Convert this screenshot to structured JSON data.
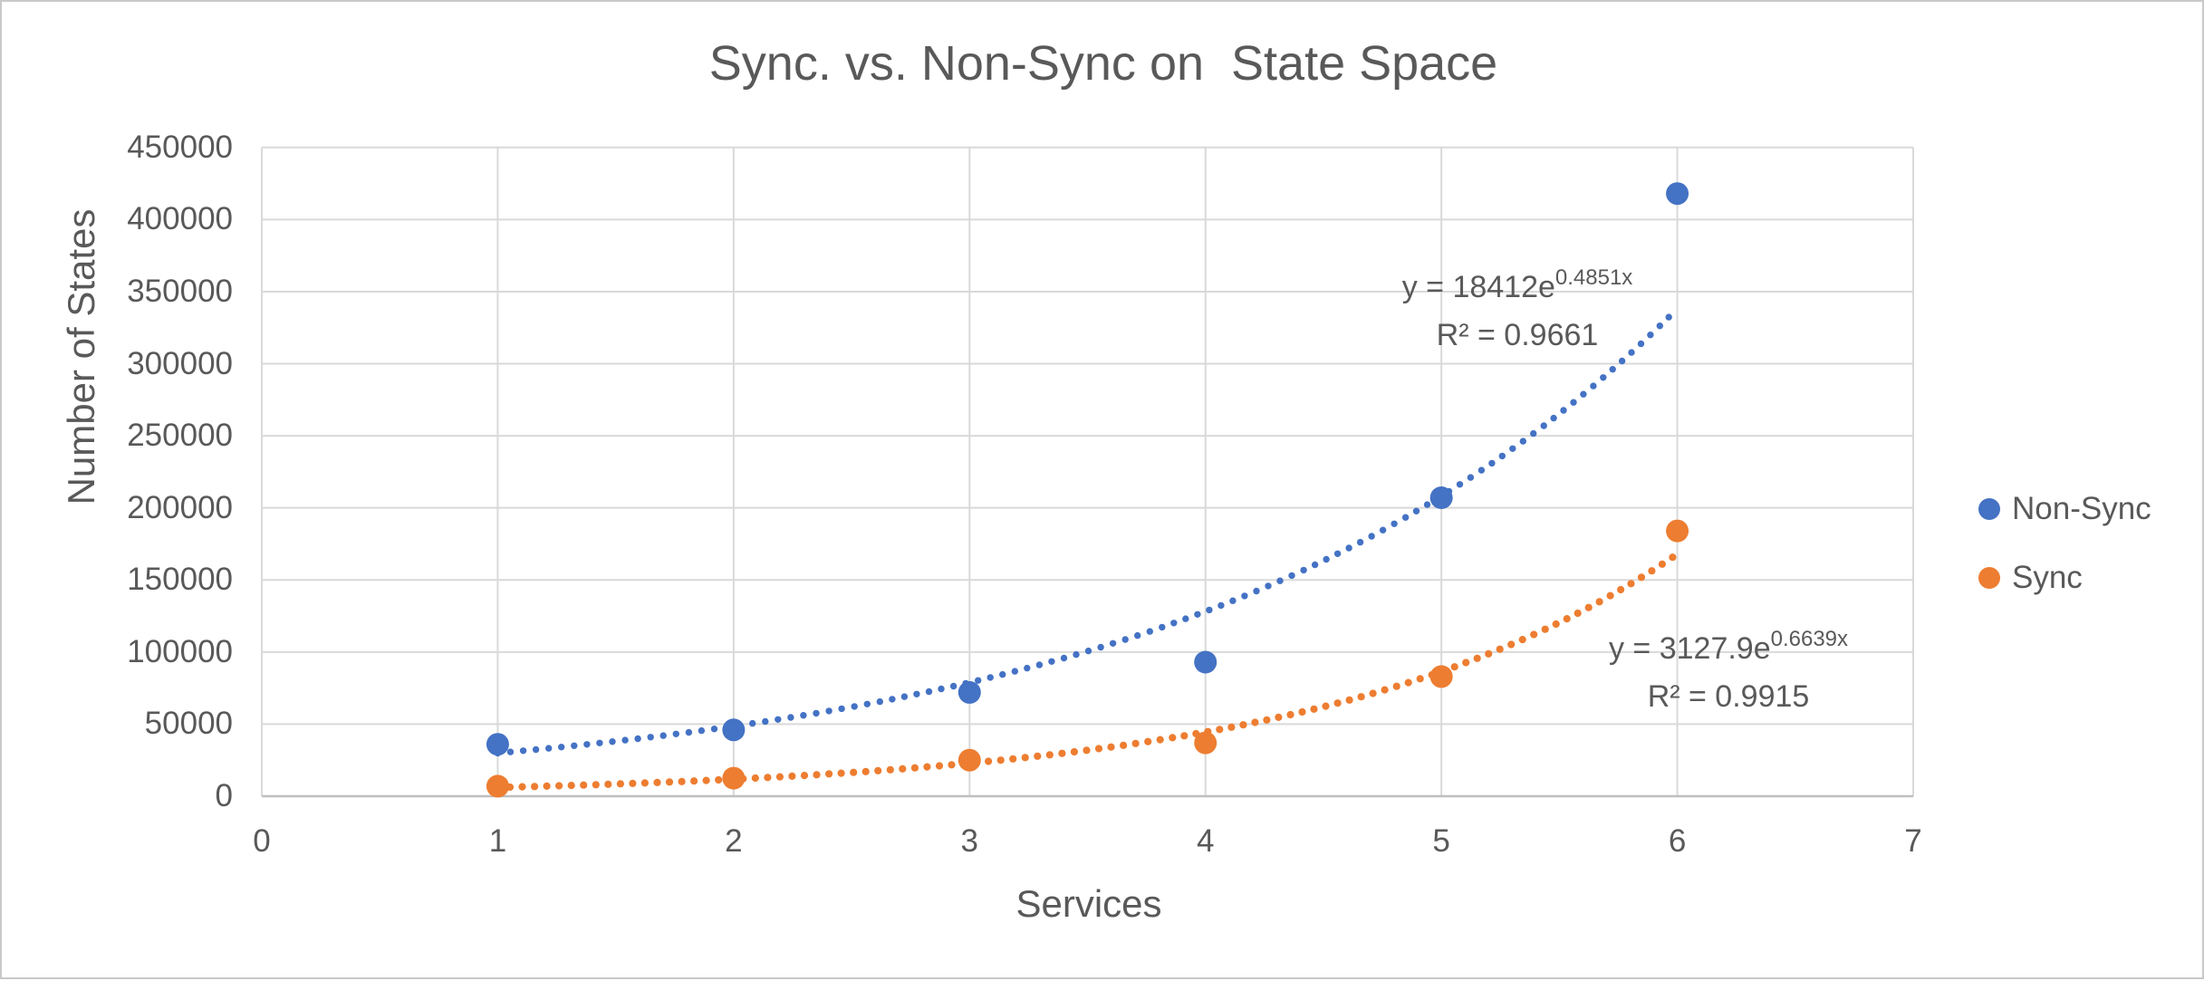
{
  "frame": {
    "background_color": "#FFFFFF",
    "border_color": "#C9C9C9"
  },
  "colors": {
    "text": "#595959",
    "gridline": "#D9D9D9",
    "axis_line": "#BFBFBF",
    "nonsync_accent": "#4472C4",
    "sync_accent": "#ED7D31"
  },
  "chart_data": {
    "type": "scatter",
    "title": "Sync. vs. Non-Sync on  State Space",
    "xlabel": "Services",
    "ylabel": "Number of States",
    "xlim": [
      0,
      7
    ],
    "ylim": [
      0,
      450000
    ],
    "x_ticks": [
      "0",
      "1",
      "2",
      "3",
      "4",
      "5",
      "6",
      "7"
    ],
    "y_ticks": [
      "0",
      "50000",
      "100000",
      "150000",
      "200000",
      "250000",
      "300000",
      "350000",
      "400000",
      "450000"
    ],
    "grid": true,
    "legend_position": "right-middle",
    "marker_style": "filled-circle",
    "trendline_style": "dotted",
    "x": [
      1,
      2,
      3,
      4,
      5,
      6
    ],
    "series": [
      {
        "name": "Non-Sync",
        "color": "#4472C4",
        "values": [
          36000,
          46000,
          72000,
          93000,
          207000,
          418000
        ],
        "trendline": {
          "type": "exponential",
          "coefficient": 18412,
          "rate": 0.4851,
          "equation_prefix": "y = 18412e",
          "equation_exponent": "0.4851x",
          "r_squared": "R² = 0.9661"
        }
      },
      {
        "name": "Sync",
        "color": "#ED7D31",
        "values": [
          7000,
          12500,
          25000,
          37000,
          83000,
          184000
        ],
        "trendline": {
          "type": "exponential",
          "coefficient": 3127.9,
          "rate": 0.6639,
          "equation_prefix": "y = 3127.9e",
          "equation_exponent": "0.6639x",
          "r_squared": "R² = 0.9915"
        }
      }
    ]
  }
}
